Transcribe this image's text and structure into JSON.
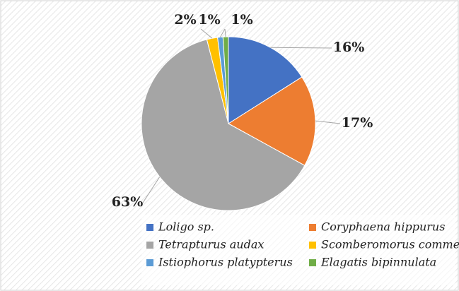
{
  "chart_data": {
    "type": "pie",
    "categories": [
      "Loligo sp.",
      "Coryphaena hippurus",
      "Tetrapturus audax",
      "Scomberomorus commerson",
      "Istiophorus platypterus",
      "Elagatis bipinnulata"
    ],
    "values": [
      16,
      17,
      63,
      2,
      1,
      1
    ],
    "value_labels": [
      "16%",
      "17%",
      "63%",
      "2%",
      "1%",
      "1%"
    ],
    "colors": [
      "#4472c4",
      "#ed7d31",
      "#a5a5a5",
      "#ffc000",
      "#5b9bd5",
      "#70ad47"
    ],
    "legend": "bottom"
  }
}
